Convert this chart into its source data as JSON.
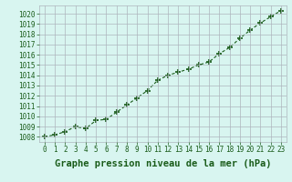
{
  "x": [
    0,
    1,
    2,
    3,
    4,
    5,
    6,
    7,
    8,
    9,
    10,
    11,
    12,
    13,
    14,
    15,
    16,
    17,
    18,
    19,
    20,
    21,
    22,
    23
  ],
  "y": [
    1008.0,
    1008.2,
    1008.5,
    1009.0,
    1008.8,
    1009.6,
    1009.7,
    1010.4,
    1011.1,
    1011.8,
    1012.5,
    1013.5,
    1014.0,
    1014.3,
    1014.6,
    1015.0,
    1015.3,
    1016.1,
    1016.7,
    1017.6,
    1018.4,
    1019.1,
    1019.7,
    1020.3
  ],
  "line_color": "#1a5c1a",
  "marker": "+",
  "marker_size": 4,
  "bg_color": "#d8f5f0",
  "plot_bg_color": "#d8f5f0",
  "grid_color": "#adb5bd",
  "ylabel_ticks": [
    1008,
    1009,
    1010,
    1011,
    1012,
    1013,
    1014,
    1015,
    1016,
    1017,
    1018,
    1019,
    1020
  ],
  "xlabel_label": "Graphe pression niveau de la mer (hPa)",
  "ylim": [
    1007.5,
    1020.8
  ],
  "xlim": [
    -0.5,
    23.5
  ],
  "tick_fontsize": 5.5,
  "label_fontsize": 7.5,
  "linewidth": 0.8,
  "marker_linewidth": 1.2
}
